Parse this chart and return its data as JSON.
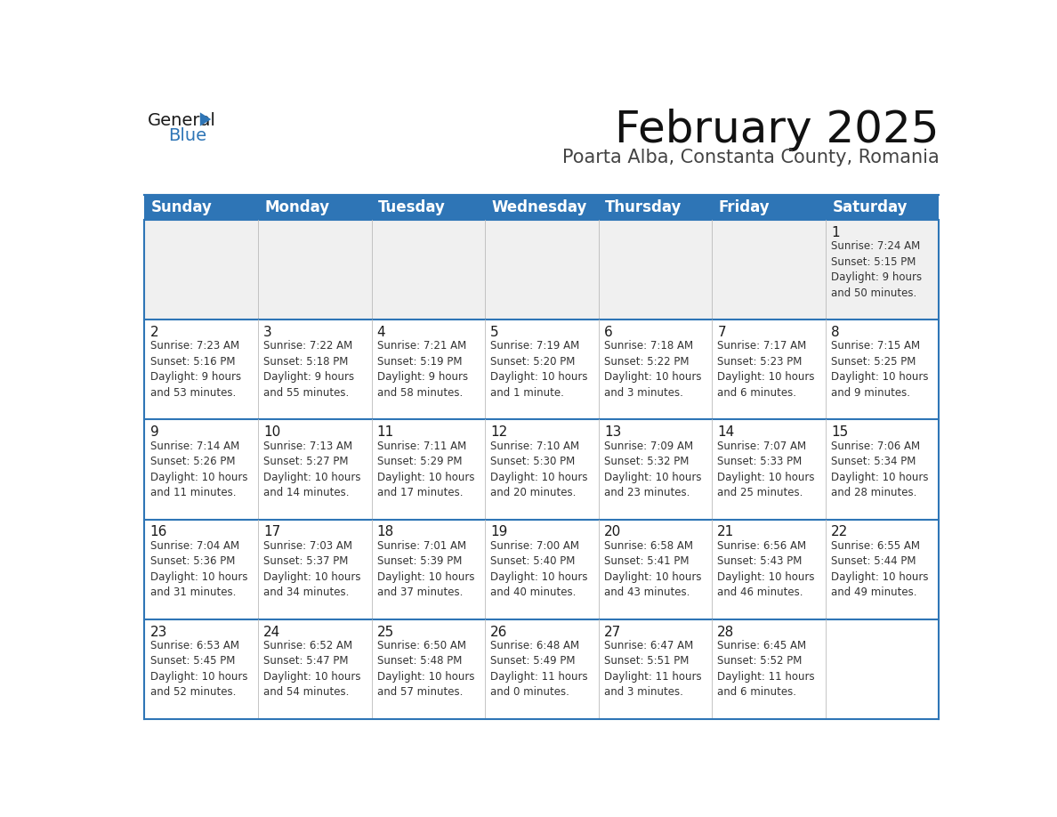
{
  "title": "February 2025",
  "subtitle": "Poarta Alba, Constanta County, Romania",
  "header_bg": "#2E75B6",
  "header_text_color": "#FFFFFF",
  "cell_border_color": "#2E75B6",
  "day_number_color": "#1a1a1a",
  "info_text_color": "#333333",
  "background_color": "#FFFFFF",
  "first_row_bg": "#F0F0F0",
  "days_of_week": [
    "Sunday",
    "Monday",
    "Tuesday",
    "Wednesday",
    "Thursday",
    "Friday",
    "Saturday"
  ],
  "weeks": [
    [
      {
        "day": null,
        "info": ""
      },
      {
        "day": null,
        "info": ""
      },
      {
        "day": null,
        "info": ""
      },
      {
        "day": null,
        "info": ""
      },
      {
        "day": null,
        "info": ""
      },
      {
        "day": null,
        "info": ""
      },
      {
        "day": 1,
        "info": "Sunrise: 7:24 AM\nSunset: 5:15 PM\nDaylight: 9 hours\nand 50 minutes."
      }
    ],
    [
      {
        "day": 2,
        "info": "Sunrise: 7:23 AM\nSunset: 5:16 PM\nDaylight: 9 hours\nand 53 minutes."
      },
      {
        "day": 3,
        "info": "Sunrise: 7:22 AM\nSunset: 5:18 PM\nDaylight: 9 hours\nand 55 minutes."
      },
      {
        "day": 4,
        "info": "Sunrise: 7:21 AM\nSunset: 5:19 PM\nDaylight: 9 hours\nand 58 minutes."
      },
      {
        "day": 5,
        "info": "Sunrise: 7:19 AM\nSunset: 5:20 PM\nDaylight: 10 hours\nand 1 minute."
      },
      {
        "day": 6,
        "info": "Sunrise: 7:18 AM\nSunset: 5:22 PM\nDaylight: 10 hours\nand 3 minutes."
      },
      {
        "day": 7,
        "info": "Sunrise: 7:17 AM\nSunset: 5:23 PM\nDaylight: 10 hours\nand 6 minutes."
      },
      {
        "day": 8,
        "info": "Sunrise: 7:15 AM\nSunset: 5:25 PM\nDaylight: 10 hours\nand 9 minutes."
      }
    ],
    [
      {
        "day": 9,
        "info": "Sunrise: 7:14 AM\nSunset: 5:26 PM\nDaylight: 10 hours\nand 11 minutes."
      },
      {
        "day": 10,
        "info": "Sunrise: 7:13 AM\nSunset: 5:27 PM\nDaylight: 10 hours\nand 14 minutes."
      },
      {
        "day": 11,
        "info": "Sunrise: 7:11 AM\nSunset: 5:29 PM\nDaylight: 10 hours\nand 17 minutes."
      },
      {
        "day": 12,
        "info": "Sunrise: 7:10 AM\nSunset: 5:30 PM\nDaylight: 10 hours\nand 20 minutes."
      },
      {
        "day": 13,
        "info": "Sunrise: 7:09 AM\nSunset: 5:32 PM\nDaylight: 10 hours\nand 23 minutes."
      },
      {
        "day": 14,
        "info": "Sunrise: 7:07 AM\nSunset: 5:33 PM\nDaylight: 10 hours\nand 25 minutes."
      },
      {
        "day": 15,
        "info": "Sunrise: 7:06 AM\nSunset: 5:34 PM\nDaylight: 10 hours\nand 28 minutes."
      }
    ],
    [
      {
        "day": 16,
        "info": "Sunrise: 7:04 AM\nSunset: 5:36 PM\nDaylight: 10 hours\nand 31 minutes."
      },
      {
        "day": 17,
        "info": "Sunrise: 7:03 AM\nSunset: 5:37 PM\nDaylight: 10 hours\nand 34 minutes."
      },
      {
        "day": 18,
        "info": "Sunrise: 7:01 AM\nSunset: 5:39 PM\nDaylight: 10 hours\nand 37 minutes."
      },
      {
        "day": 19,
        "info": "Sunrise: 7:00 AM\nSunset: 5:40 PM\nDaylight: 10 hours\nand 40 minutes."
      },
      {
        "day": 20,
        "info": "Sunrise: 6:58 AM\nSunset: 5:41 PM\nDaylight: 10 hours\nand 43 minutes."
      },
      {
        "day": 21,
        "info": "Sunrise: 6:56 AM\nSunset: 5:43 PM\nDaylight: 10 hours\nand 46 minutes."
      },
      {
        "day": 22,
        "info": "Sunrise: 6:55 AM\nSunset: 5:44 PM\nDaylight: 10 hours\nand 49 minutes."
      }
    ],
    [
      {
        "day": 23,
        "info": "Sunrise: 6:53 AM\nSunset: 5:45 PM\nDaylight: 10 hours\nand 52 minutes."
      },
      {
        "day": 24,
        "info": "Sunrise: 6:52 AM\nSunset: 5:47 PM\nDaylight: 10 hours\nand 54 minutes."
      },
      {
        "day": 25,
        "info": "Sunrise: 6:50 AM\nSunset: 5:48 PM\nDaylight: 10 hours\nand 57 minutes."
      },
      {
        "day": 26,
        "info": "Sunrise: 6:48 AM\nSunset: 5:49 PM\nDaylight: 11 hours\nand 0 minutes."
      },
      {
        "day": 27,
        "info": "Sunrise: 6:47 AM\nSunset: 5:51 PM\nDaylight: 11 hours\nand 3 minutes."
      },
      {
        "day": 28,
        "info": "Sunrise: 6:45 AM\nSunset: 5:52 PM\nDaylight: 11 hours\nand 6 minutes."
      },
      {
        "day": null,
        "info": ""
      }
    ]
  ],
  "logo_color_general": "#1a1a1a",
  "logo_color_blue": "#2E75B6",
  "logo_triangle_color": "#2E75B6",
  "title_fontsize": 36,
  "subtitle_fontsize": 15,
  "header_fontsize": 12,
  "day_number_fontsize": 11,
  "info_fontsize": 8.5
}
